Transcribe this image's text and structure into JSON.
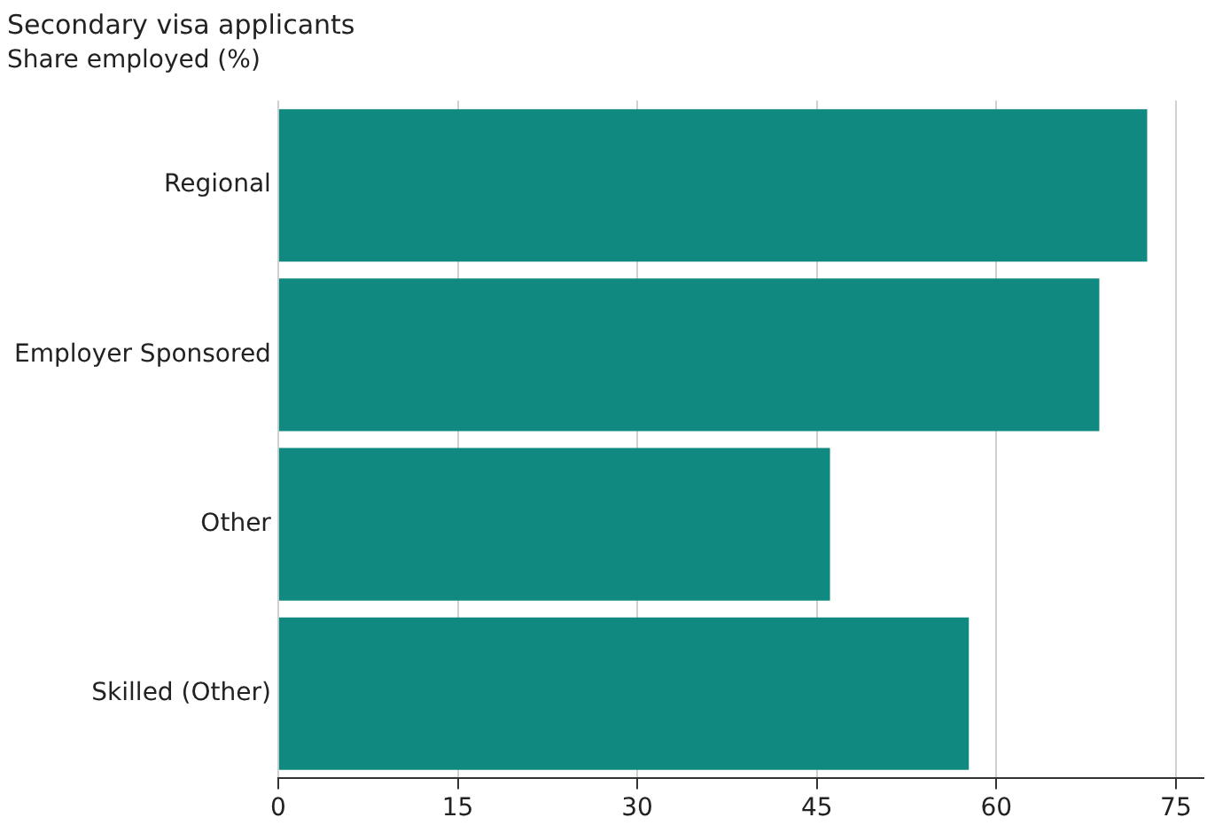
{
  "chart_data": {
    "type": "bar",
    "title": "Secondary visa applicants",
    "subtitle": "Share employed (%)",
    "orientation": "horizontal",
    "categories": [
      "Regional",
      "Employer Sponsored",
      "Other",
      "Skilled (Other)"
    ],
    "values": [
      72.6,
      68.6,
      46.1,
      57.7
    ],
    "color": "#108a80",
    "xlim": [
      0,
      77.3
    ],
    "xticks": [
      0,
      15,
      30,
      45,
      60,
      75
    ],
    "grid": "x",
    "legend": false
  }
}
